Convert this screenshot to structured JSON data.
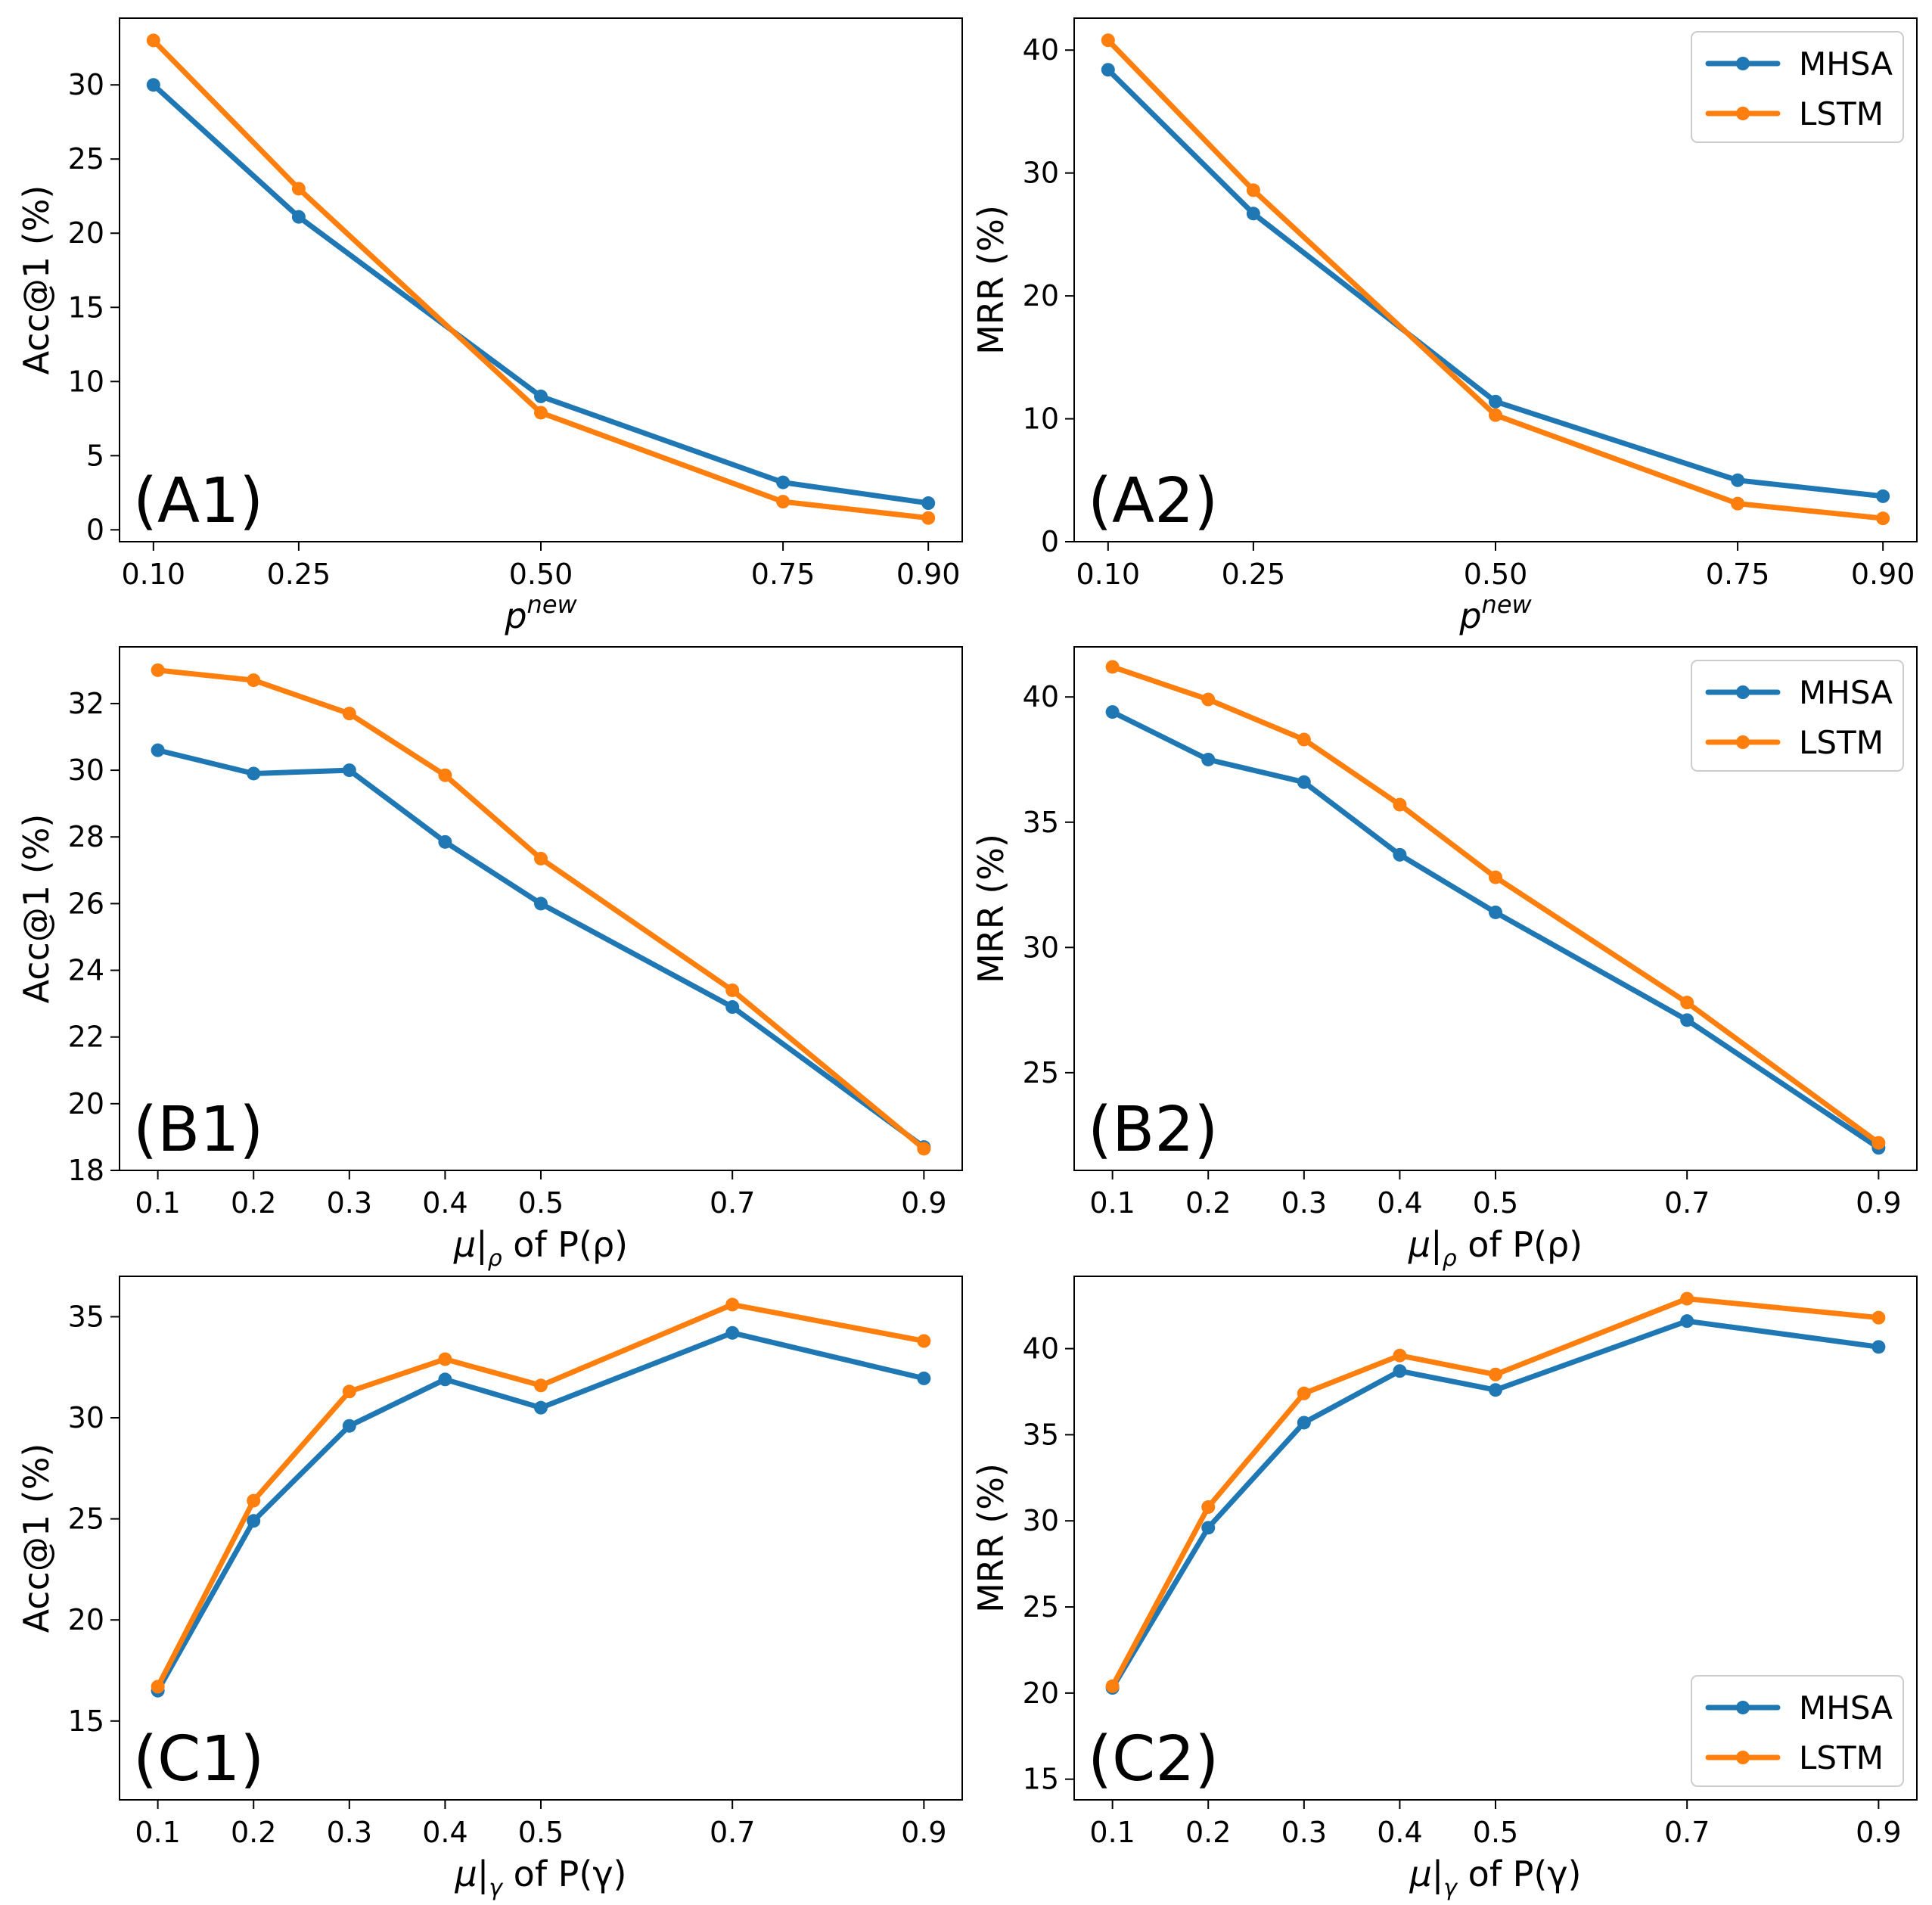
{
  "colors": {
    "MHSA": "#1f77b4",
    "LSTM": "#ff7f0e"
  },
  "chart_data": [
    {
      "id": "A1",
      "type": "line",
      "panel_label": "(A1)",
      "xlabel_base": "p",
      "xlabel_sup": "new",
      "xlabel_sub": "",
      "xlabel_tail": "",
      "ylabel": "Acc@1 (%)",
      "x": [
        0.1,
        0.25,
        0.5,
        0.75,
        0.9
      ],
      "xticks": [
        "0.10",
        "0.25",
        "0.50",
        "0.75",
        "0.90"
      ],
      "xlim": [
        0.065,
        0.935
      ],
      "ylim": [
        -0.8,
        34.5
      ],
      "yticks": [
        0,
        5,
        10,
        15,
        20,
        25,
        30
      ],
      "ytick_labels": [
        "0",
        "5",
        "10",
        "15",
        "20",
        "25",
        "30"
      ],
      "legend": null,
      "series": [
        {
          "name": "MHSA",
          "values": [
            30.0,
            21.1,
            9.0,
            3.2,
            1.8
          ]
        },
        {
          "name": "LSTM",
          "values": [
            33.0,
            23.0,
            7.9,
            1.9,
            0.8
          ]
        }
      ]
    },
    {
      "id": "A2",
      "type": "line",
      "panel_label": "(A2)",
      "xlabel_base": "p",
      "xlabel_sup": "new",
      "xlabel_sub": "",
      "xlabel_tail": "",
      "ylabel": "MRR (%)",
      "x": [
        0.1,
        0.25,
        0.5,
        0.75,
        0.9
      ],
      "xticks": [
        "0.10",
        "0.25",
        "0.50",
        "0.75",
        "0.90"
      ],
      "xlim": [
        0.065,
        0.935
      ],
      "ylim": [
        0,
        42.6
      ],
      "yticks": [
        0,
        10,
        20,
        30,
        40
      ],
      "ytick_labels": [
        "0",
        "10",
        "20",
        "30",
        "40"
      ],
      "legend": "upper right",
      "series": [
        {
          "name": "MHSA",
          "values": [
            38.4,
            26.7,
            11.4,
            5.0,
            3.7
          ]
        },
        {
          "name": "LSTM",
          "values": [
            40.8,
            28.6,
            10.3,
            3.1,
            1.9
          ]
        }
      ]
    },
    {
      "id": "B1",
      "type": "line",
      "panel_label": "(B1)",
      "xlabel_base": "μ|",
      "xlabel_sup": "",
      "xlabel_sub": "ρ",
      "xlabel_tail": " of P(ρ)",
      "ylabel": "Acc@1 (%)",
      "x": [
        0.1,
        0.2,
        0.3,
        0.4,
        0.5,
        0.7,
        0.9
      ],
      "xticks": [
        "0.1",
        "0.2",
        "0.3",
        "0.4",
        "0.5",
        "0.7",
        "0.9"
      ],
      "xlim": [
        0.06,
        0.94
      ],
      "ylim": [
        18.0,
        33.7
      ],
      "yticks": [
        18,
        20,
        22,
        24,
        26,
        28,
        30,
        32
      ],
      "ytick_labels": [
        "18",
        "20",
        "22",
        "24",
        "26",
        "28",
        "30",
        "32"
      ],
      "legend": null,
      "series": [
        {
          "name": "MHSA",
          "values": [
            30.6,
            29.9,
            30.0,
            27.85,
            26.0,
            22.9,
            18.7
          ]
        },
        {
          "name": "LSTM",
          "values": [
            33.0,
            32.7,
            31.7,
            29.85,
            27.35,
            23.4,
            18.65
          ]
        }
      ]
    },
    {
      "id": "B2",
      "type": "line",
      "panel_label": "(B2)",
      "xlabel_base": "μ|",
      "xlabel_sup": "",
      "xlabel_sub": "ρ",
      "xlabel_tail": " of P(ρ)",
      "ylabel": "MRR (%)",
      "x": [
        0.1,
        0.2,
        0.3,
        0.4,
        0.5,
        0.7,
        0.9
      ],
      "xticks": [
        "0.1",
        "0.2",
        "0.3",
        "0.4",
        "0.5",
        "0.7",
        "0.9"
      ],
      "xlim": [
        0.06,
        0.94
      ],
      "ylim": [
        21.1,
        42.0
      ],
      "yticks": [
        25,
        30,
        35,
        40
      ],
      "ytick_labels": [
        "25",
        "30",
        "35",
        "40"
      ],
      "legend": "upper right",
      "series": [
        {
          "name": "MHSA",
          "values": [
            39.4,
            37.5,
            36.6,
            33.7,
            31.4,
            27.1,
            22.0
          ]
        },
        {
          "name": "LSTM",
          "values": [
            41.2,
            39.9,
            38.3,
            35.7,
            32.8,
            27.8,
            22.2
          ]
        }
      ]
    },
    {
      "id": "C1",
      "type": "line",
      "panel_label": "(C1)",
      "xlabel_base": "μ|",
      "xlabel_sup": "",
      "xlabel_sub": "γ",
      "xlabel_tail": " of P(γ)",
      "ylabel": "Acc@1 (%)",
      "x": [
        0.1,
        0.2,
        0.3,
        0.4,
        0.5,
        0.7,
        0.9
      ],
      "xticks": [
        "0.1",
        "0.2",
        "0.3",
        "0.4",
        "0.5",
        "0.7",
        "0.9"
      ],
      "xlim": [
        0.06,
        0.94
      ],
      "ylim": [
        11.1,
        37.0
      ],
      "yticks": [
        15,
        20,
        25,
        30,
        35
      ],
      "ytick_labels": [
        "15",
        "20",
        "25",
        "30",
        "35"
      ],
      "legend": null,
      "series": [
        {
          "name": "MHSA",
          "values": [
            16.5,
            24.9,
            29.6,
            31.9,
            30.5,
            34.2,
            31.95
          ]
        },
        {
          "name": "LSTM",
          "values": [
            16.7,
            25.9,
            31.3,
            32.9,
            31.6,
            35.6,
            33.8
          ]
        }
      ]
    },
    {
      "id": "C2",
      "type": "line",
      "panel_label": "(C2)",
      "xlabel_base": "μ|",
      "xlabel_sup": "",
      "xlabel_sub": "γ",
      "xlabel_tail": " of P(γ)",
      "ylabel": "MRR (%)",
      "x": [
        0.1,
        0.2,
        0.3,
        0.4,
        0.5,
        0.7,
        0.9
      ],
      "xticks": [
        "0.1",
        "0.2",
        "0.3",
        "0.4",
        "0.5",
        "0.7",
        "0.9"
      ],
      "xlim": [
        0.06,
        0.94
      ],
      "ylim": [
        13.8,
        44.2
      ],
      "yticks": [
        15,
        20,
        25,
        30,
        35,
        40
      ],
      "ytick_labels": [
        "15",
        "20",
        "25",
        "30",
        "35",
        "40"
      ],
      "legend": "lower right",
      "series": [
        {
          "name": "MHSA",
          "values": [
            20.3,
            29.6,
            35.7,
            38.7,
            37.6,
            41.6,
            40.1
          ]
        },
        {
          "name": "LSTM",
          "values": [
            20.4,
            30.8,
            37.4,
            39.6,
            38.5,
            42.9,
            41.8
          ]
        }
      ]
    }
  ]
}
